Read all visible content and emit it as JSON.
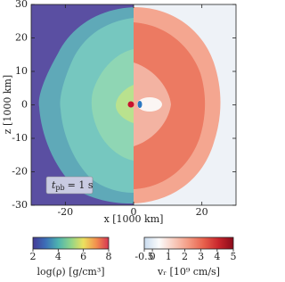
{
  "chart_data": {
    "type": "heatmap",
    "xlabel": "x [1000 km]",
    "ylabel": "z [1000 km]",
    "xlim": [
      -30,
      30
    ],
    "xticks": [
      -20,
      0,
      20
    ],
    "ylim": [
      -30,
      30
    ],
    "yticks": [
      -30,
      -20,
      -10,
      0,
      10,
      20,
      30
    ],
    "annotation": [
      "t",
      "pb",
      "= 1 s"
    ],
    "colorbars": [
      {
        "label": "log(ρ) [g/cm³]",
        "lim": [
          2,
          8
        ],
        "ticks": [
          2,
          4,
          6,
          8
        ],
        "colors": [
          "#453a96",
          "#3b6fb8",
          "#4db3b0",
          "#8fd48a",
          "#ece15e",
          "#f2904e",
          "#d63552"
        ]
      },
      {
        "label": "vᵣ [10⁹ cm/s]",
        "lim": [
          -0.5,
          5
        ],
        "ticks": [
          -0.5,
          0,
          1,
          2,
          3,
          4,
          5
        ],
        "colors": [
          "#c9dcef",
          "#fbfbfb",
          "#f8cbbd",
          "#f39a82",
          "#e8604c",
          "#c8262c",
          "#8a0a1a"
        ]
      }
    ]
  }
}
